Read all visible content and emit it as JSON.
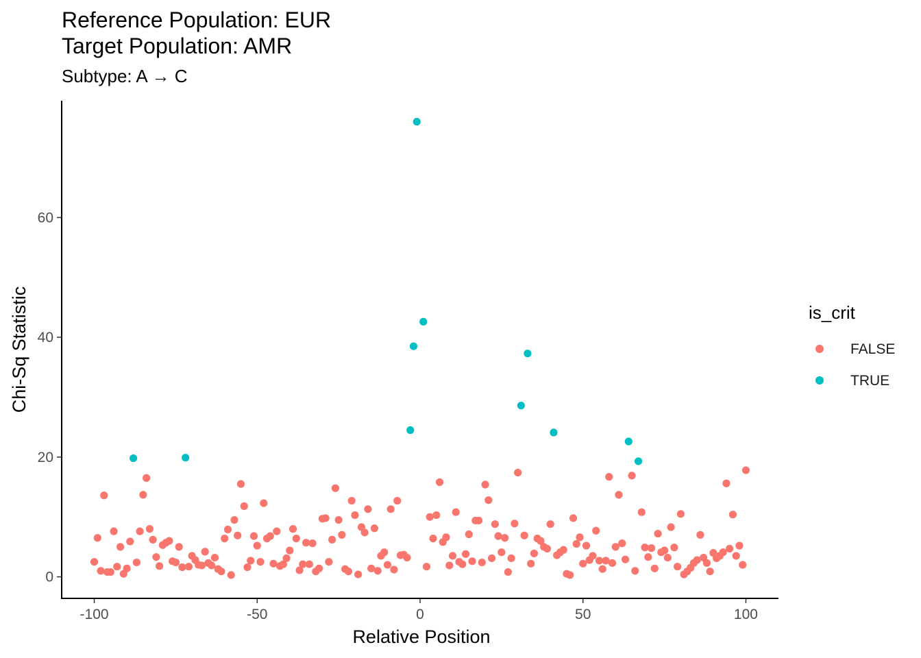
{
  "chart_data": {
    "type": "scatter",
    "title_lines": [
      "Reference Population: EUR",
      "Target Population: AMR"
    ],
    "subtitle": "Subtype: A → C",
    "xlabel": "Relative Position",
    "ylabel": "Chi-Sq Statistic",
    "xlim": [
      -110,
      110
    ],
    "ylim": [
      -3.6,
      79.5
    ],
    "xticks": [
      -100,
      -50,
      0,
      50,
      100
    ],
    "xtick_labels": [
      "-100",
      "-50",
      "0",
      "50",
      "100"
    ],
    "yticks": [
      0,
      20,
      40,
      60
    ],
    "ytick_labels": [
      "0",
      "20",
      "40",
      "60"
    ],
    "grid": false,
    "legend": {
      "title": "is_crit",
      "placement": "right",
      "entries": [
        {
          "label": "FALSE",
          "color": "#F8766D"
        },
        {
          "label": "TRUE",
          "color": "#00BFC4"
        }
      ]
    },
    "series": [
      {
        "name": "FALSE",
        "color": "#F8766D",
        "points": [
          [
            -100,
            2.5
          ],
          [
            -99,
            6.5
          ],
          [
            -98,
            1
          ],
          [
            -97,
            13.6
          ],
          [
            -96,
            0.8
          ],
          [
            -95,
            0.8
          ],
          [
            -94,
            7.6
          ],
          [
            -93,
            1.7
          ],
          [
            -92,
            5
          ],
          [
            -91,
            0.5
          ],
          [
            -90,
            1.4
          ],
          [
            -89,
            5.9
          ],
          [
            -87,
            2.4
          ],
          [
            -86,
            7.6
          ],
          [
            -85,
            13.7
          ],
          [
            -84,
            16.5
          ],
          [
            -83,
            8
          ],
          [
            -82,
            6.2
          ],
          [
            -81,
            3.3
          ],
          [
            -80,
            1.8
          ],
          [
            -79,
            5.3
          ],
          [
            -78,
            5.7
          ],
          [
            -77,
            6
          ],
          [
            -76,
            2.6
          ],
          [
            -75,
            2.4
          ],
          [
            -74,
            5
          ],
          [
            -73,
            1.6
          ],
          [
            -71,
            1.7
          ],
          [
            -70,
            3.5
          ],
          [
            -69,
            2.8
          ],
          [
            -68,
            2
          ],
          [
            -67,
            1.9
          ],
          [
            -66,
            4.2
          ],
          [
            -65,
            2.3
          ],
          [
            -64,
            1.9
          ],
          [
            -63,
            3.2
          ],
          [
            -62,
            1.3
          ],
          [
            -61,
            0.9
          ],
          [
            -60,
            6.4
          ],
          [
            -59,
            7.9
          ],
          [
            -58,
            0.3
          ],
          [
            -57,
            9.5
          ],
          [
            -56,
            6.9
          ],
          [
            -55,
            15.5
          ],
          [
            -54,
            11.8
          ],
          [
            -53,
            1.6
          ],
          [
            -52,
            2.7
          ],
          [
            -51,
            6.8
          ],
          [
            -50,
            5.2
          ],
          [
            -49,
            2.5
          ],
          [
            -48,
            12.3
          ],
          [
            -47,
            6.4
          ],
          [
            -46,
            6.8
          ],
          [
            -45,
            2.2
          ],
          [
            -44,
            7.6
          ],
          [
            -43,
            1.8
          ],
          [
            -42,
            2.1
          ],
          [
            -41,
            3.1
          ],
          [
            -40,
            4.4
          ],
          [
            -39,
            8
          ],
          [
            -38,
            6.4
          ],
          [
            -37,
            1.1
          ],
          [
            -36,
            2.1
          ],
          [
            -35,
            5.7
          ],
          [
            -34,
            2.1
          ],
          [
            -33,
            5.6
          ],
          [
            -32,
            0.9
          ],
          [
            -31,
            1.4
          ],
          [
            -30,
            9.7
          ],
          [
            -29,
            9.8
          ],
          [
            -28,
            2.5
          ],
          [
            -27,
            6.2
          ],
          [
            -26,
            14.8
          ],
          [
            -25,
            9.5
          ],
          [
            -24,
            7
          ],
          [
            -23,
            1.3
          ],
          [
            -22,
            0.9
          ],
          [
            -21,
            12.7
          ],
          [
            -20,
            10.3
          ],
          [
            -19,
            0.4
          ],
          [
            -18,
            8.3
          ],
          [
            -17,
            7.4
          ],
          [
            -16,
            11.3
          ],
          [
            -15,
            1.4
          ],
          [
            -14,
            8.1
          ],
          [
            -13,
            1
          ],
          [
            -12,
            3.5
          ],
          [
            -11,
            4.1
          ],
          [
            -10,
            2
          ],
          [
            -9,
            11.3
          ],
          [
            -8,
            1.2
          ],
          [
            -7,
            12.7
          ],
          [
            -6,
            3.6
          ],
          [
            -5,
            3.7
          ],
          [
            -4,
            3.2
          ],
          [
            2,
            1.7
          ],
          [
            3,
            10
          ],
          [
            4,
            6.4
          ],
          [
            5,
            10.3
          ],
          [
            6,
            15.8
          ],
          [
            7,
            5.8
          ],
          [
            8,
            6.6
          ],
          [
            9,
            1.9
          ],
          [
            10,
            3.5
          ],
          [
            11,
            10.8
          ],
          [
            12,
            2.5
          ],
          [
            13,
            2.1
          ],
          [
            14,
            3.8
          ],
          [
            15,
            7.1
          ],
          [
            16,
            2.6
          ],
          [
            17,
            9.4
          ],
          [
            18,
            9.4
          ],
          [
            19,
            2.4
          ],
          [
            20,
            15.4
          ],
          [
            21,
            12.8
          ],
          [
            22,
            3.1
          ],
          [
            23,
            8.8
          ],
          [
            24,
            6.8
          ],
          [
            25,
            4.1
          ],
          [
            26,
            6.5
          ],
          [
            27,
            0.8
          ],
          [
            28,
            3.1
          ],
          [
            29,
            8.9
          ],
          [
            30,
            17.4
          ],
          [
            32,
            6.9
          ],
          [
            34,
            2.2
          ],
          [
            35,
            3.9
          ],
          [
            36,
            6.4
          ],
          [
            37,
            6
          ],
          [
            38,
            5
          ],
          [
            39,
            4.7
          ],
          [
            40,
            8.8
          ],
          [
            42,
            3.6
          ],
          [
            43,
            4.1
          ],
          [
            44,
            4.5
          ],
          [
            45,
            0.5
          ],
          [
            46,
            0.3
          ],
          [
            47,
            9.8
          ],
          [
            48,
            5.5
          ],
          [
            49,
            6.6
          ],
          [
            50,
            2.2
          ],
          [
            51,
            5.2
          ],
          [
            52,
            2.8
          ],
          [
            53,
            3.5
          ],
          [
            54,
            7.7
          ],
          [
            55,
            2.7
          ],
          [
            56,
            1.3
          ],
          [
            57,
            2.7
          ],
          [
            58,
            16.7
          ],
          [
            59,
            2.3
          ],
          [
            60,
            5
          ],
          [
            61,
            13.7
          ],
          [
            62,
            5.6
          ],
          [
            63,
            2.9
          ],
          [
            65,
            16.9
          ],
          [
            66,
            1
          ],
          [
            68,
            10.8
          ],
          [
            69,
            4.9
          ],
          [
            70,
            3.3
          ],
          [
            71,
            4.8
          ],
          [
            72,
            1.4
          ],
          [
            73,
            7.2
          ],
          [
            74,
            4.1
          ],
          [
            75,
            4.4
          ],
          [
            76,
            3.2
          ],
          [
            77,
            8.3
          ],
          [
            78,
            4.9
          ],
          [
            79,
            1.7
          ],
          [
            80,
            10.5
          ],
          [
            81,
            0.4
          ],
          [
            82,
            0.9
          ],
          [
            83,
            1.5
          ],
          [
            84,
            2.3
          ],
          [
            85,
            2.8
          ],
          [
            86,
            7
          ],
          [
            87,
            3.2
          ],
          [
            88,
            2.3
          ],
          [
            89,
            0.9
          ],
          [
            90,
            4
          ],
          [
            91,
            3.1
          ],
          [
            92,
            3.5
          ],
          [
            93,
            4.1
          ],
          [
            94,
            15.6
          ],
          [
            95,
            4.7
          ],
          [
            96,
            10.4
          ],
          [
            97,
            3.5
          ],
          [
            98,
            5.2
          ],
          [
            99,
            2
          ],
          [
            100,
            17.8
          ]
        ]
      },
      {
        "name": "TRUE",
        "color": "#00BFC4",
        "points": [
          [
            -88,
            19.8
          ],
          [
            -72,
            19.9
          ],
          [
            -3,
            24.5
          ],
          [
            -2,
            38.5
          ],
          [
            -1,
            76
          ],
          [
            1,
            42.6
          ],
          [
            31,
            28.6
          ],
          [
            33,
            37.3
          ],
          [
            41,
            24.1
          ],
          [
            64,
            22.6
          ],
          [
            67,
            19.3
          ]
        ]
      }
    ]
  }
}
